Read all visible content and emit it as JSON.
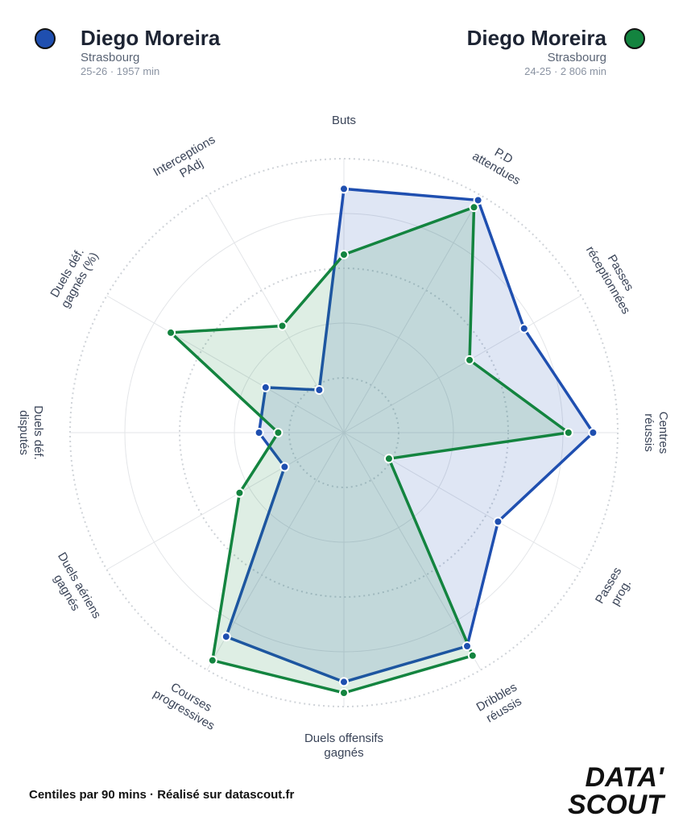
{
  "chart_data": {
    "type": "radar",
    "categories": [
      "Buts",
      "P.D\nattendues",
      "Passes\nréceptionnées",
      "Centres\nréussis",
      "Passes\nprog.",
      "Dribbles\nréussis",
      "Duels offensifs\ngagnés",
      "Courses\nprogressives",
      "Duels aériens\ngagnés",
      "Duels déf.\ndisputés",
      "Duels déf.\ngagnés (%)",
      "Interceptions\nPAdj"
    ],
    "series": [
      {
        "name": "Diego Moreira",
        "club": "Strasbourg",
        "period": "25-26 · 1957 min",
        "color": "#1f4fb0",
        "values": [
          89,
          98,
          76,
          91,
          65,
          90,
          91,
          86,
          25,
          31,
          33,
          18
        ]
      },
      {
        "name": "Diego Moreira",
        "club": "Strasbourg",
        "period": "24-25 · 2 806 min",
        "color": "#13843f",
        "values": [
          65,
          95,
          53,
          82,
          19,
          94,
          95,
          96,
          44,
          24,
          73,
          45
        ]
      }
    ],
    "rlim": [
      0,
      100
    ],
    "rticks": [
      20,
      40,
      60,
      80,
      100
    ],
    "grid": true,
    "footer": "Centiles par 90 mins · Réalisé sur datascout.fr",
    "logo": [
      "DATA'",
      "SCOUT"
    ]
  }
}
